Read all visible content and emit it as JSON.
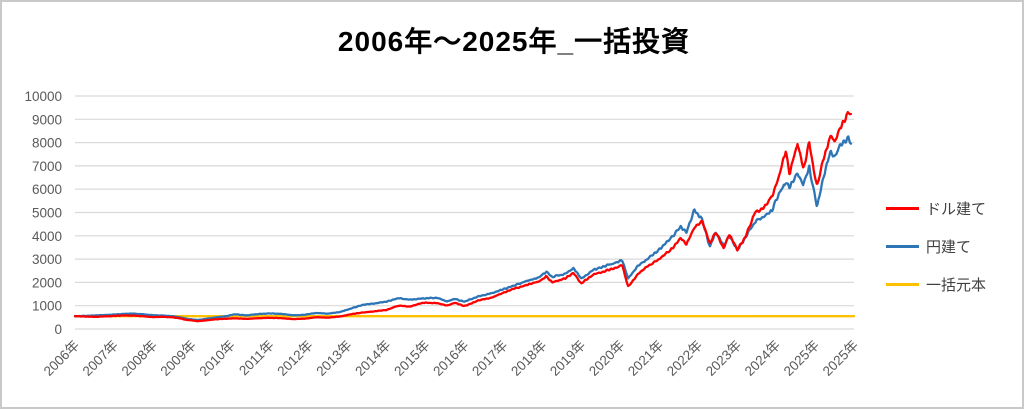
{
  "chart_data": {
    "type": "line",
    "title": "2006年～2025年_一括投資",
    "xlabel": "",
    "ylabel": "",
    "grid": true,
    "grid_color": "#d9d9d9",
    "axis_text_color": "#595959",
    "legend_position": "right",
    "y_axis": {
      "min": 0,
      "max": 10000,
      "step": 1000,
      "ticks": [
        0,
        1000,
        2000,
        3000,
        4000,
        5000,
        6000,
        7000,
        8000,
        9000,
        10000
      ]
    },
    "x_axis": {
      "range": [
        2006,
        2026
      ],
      "labels": [
        "2006年",
        "2007年",
        "2008年",
        "2009年",
        "2010年",
        "2011年",
        "2012年",
        "2013年",
        "2014年",
        "2015年",
        "2016年",
        "2017年",
        "2018年",
        "2019年",
        "2020年",
        "2021年",
        "2022年",
        "2023年",
        "2024年",
        "2025年",
        "2025年"
      ]
    },
    "series": [
      {
        "name": "一括元本",
        "color": "#ffc000",
        "noisy": false,
        "points": [
          [
            2006.0,
            550
          ],
          [
            2026.0,
            550
          ]
        ]
      },
      {
        "name": "円建て",
        "color": "#2e75b6",
        "noisy": true,
        "points": [
          [
            2006.0,
            550
          ],
          [
            2006.25,
            562
          ],
          [
            2006.5,
            578
          ],
          [
            2006.75,
            600
          ],
          [
            2007.0,
            618
          ],
          [
            2007.25,
            648
          ],
          [
            2007.5,
            658
          ],
          [
            2007.75,
            632
          ],
          [
            2008.0,
            592
          ],
          [
            2008.25,
            578
          ],
          [
            2008.5,
            548
          ],
          [
            2008.7,
            500
          ],
          [
            2008.85,
            445
          ],
          [
            2009.0,
            408
          ],
          [
            2009.15,
            385
          ],
          [
            2009.35,
            432
          ],
          [
            2009.6,
            492
          ],
          [
            2009.85,
            542
          ],
          [
            2010.1,
            628
          ],
          [
            2010.4,
            588
          ],
          [
            2010.7,
            640
          ],
          [
            2011.0,
            668
          ],
          [
            2011.3,
            648
          ],
          [
            2011.6,
            585
          ],
          [
            2011.9,
            615
          ],
          [
            2012.2,
            688
          ],
          [
            2012.5,
            662
          ],
          [
            2012.8,
            728
          ],
          [
            2013.1,
            890
          ],
          [
            2013.4,
            1040
          ],
          [
            2013.7,
            1100
          ],
          [
            2014.0,
            1180
          ],
          [
            2014.3,
            1320
          ],
          [
            2014.6,
            1260
          ],
          [
            2014.95,
            1310
          ],
          [
            2015.3,
            1345
          ],
          [
            2015.55,
            1175
          ],
          [
            2015.75,
            1290
          ],
          [
            2016.0,
            1170
          ],
          [
            2016.35,
            1400
          ],
          [
            2016.7,
            1530
          ],
          [
            2017.0,
            1700
          ],
          [
            2017.3,
            1890
          ],
          [
            2017.6,
            2060
          ],
          [
            2017.9,
            2200
          ],
          [
            2018.1,
            2460
          ],
          [
            2018.25,
            2240
          ],
          [
            2018.55,
            2350
          ],
          [
            2018.8,
            2600
          ],
          [
            2019.0,
            2170
          ],
          [
            2019.3,
            2530
          ],
          [
            2019.6,
            2700
          ],
          [
            2019.9,
            2870
          ],
          [
            2020.05,
            2950
          ],
          [
            2020.2,
            2170
          ],
          [
            2020.45,
            2700
          ],
          [
            2020.7,
            3000
          ],
          [
            2021.0,
            3400
          ],
          [
            2021.3,
            3900
          ],
          [
            2021.55,
            4400
          ],
          [
            2021.7,
            4150
          ],
          [
            2021.9,
            5150
          ],
          [
            2022.1,
            4700
          ],
          [
            2022.3,
            3530
          ],
          [
            2022.45,
            4150
          ],
          [
            2022.65,
            3600
          ],
          [
            2022.8,
            4000
          ],
          [
            2023.0,
            3390
          ],
          [
            2023.2,
            3880
          ],
          [
            2023.45,
            4600
          ],
          [
            2023.7,
            4815
          ],
          [
            2023.9,
            5100
          ],
          [
            2024.1,
            5900
          ],
          [
            2024.25,
            6300
          ],
          [
            2024.35,
            6100
          ],
          [
            2024.55,
            6700
          ],
          [
            2024.7,
            6200
          ],
          [
            2024.85,
            6960
          ],
          [
            2025.05,
            5240
          ],
          [
            2025.2,
            6400
          ],
          [
            2025.4,
            7670
          ],
          [
            2025.5,
            7310
          ],
          [
            2025.65,
            7900
          ],
          [
            2025.78,
            8100
          ],
          [
            2025.85,
            8240
          ],
          [
            2025.92,
            7950
          ]
        ]
      },
      {
        "name": "ドル建て",
        "color": "#fe0000",
        "noisy": true,
        "points": [
          [
            2006.0,
            550
          ],
          [
            2006.25,
            538
          ],
          [
            2006.5,
            522
          ],
          [
            2006.75,
            540
          ],
          [
            2007.0,
            558
          ],
          [
            2007.25,
            582
          ],
          [
            2007.5,
            575
          ],
          [
            2007.75,
            548
          ],
          [
            2008.0,
            512
          ],
          [
            2008.25,
            522
          ],
          [
            2008.5,
            505
          ],
          [
            2008.7,
            455
          ],
          [
            2008.85,
            395
          ],
          [
            2009.0,
            368
          ],
          [
            2009.15,
            335
          ],
          [
            2009.35,
            368
          ],
          [
            2009.6,
            415
          ],
          [
            2009.85,
            438
          ],
          [
            2010.1,
            458
          ],
          [
            2010.4,
            436
          ],
          [
            2010.7,
            462
          ],
          [
            2011.0,
            478
          ],
          [
            2011.3,
            466
          ],
          [
            2011.6,
            424
          ],
          [
            2011.9,
            446
          ],
          [
            2012.2,
            504
          ],
          [
            2012.5,
            490
          ],
          [
            2012.8,
            535
          ],
          [
            2013.1,
            640
          ],
          [
            2013.4,
            710
          ],
          [
            2013.7,
            760
          ],
          [
            2014.0,
            820
          ],
          [
            2014.3,
            1000
          ],
          [
            2014.6,
            960
          ],
          [
            2014.95,
            1130
          ],
          [
            2015.3,
            1110
          ],
          [
            2015.55,
            1000
          ],
          [
            2015.75,
            1120
          ],
          [
            2016.0,
            985
          ],
          [
            2016.35,
            1220
          ],
          [
            2016.7,
            1350
          ],
          [
            2017.0,
            1560
          ],
          [
            2017.3,
            1740
          ],
          [
            2017.6,
            1890
          ],
          [
            2017.9,
            2030
          ],
          [
            2018.1,
            2260
          ],
          [
            2018.25,
            2000
          ],
          [
            2018.55,
            2150
          ],
          [
            2018.8,
            2400
          ],
          [
            2019.0,
            1950
          ],
          [
            2019.3,
            2330
          ],
          [
            2019.6,
            2480
          ],
          [
            2019.9,
            2630
          ],
          [
            2020.05,
            2750
          ],
          [
            2020.2,
            1810
          ],
          [
            2020.45,
            2350
          ],
          [
            2020.7,
            2700
          ],
          [
            2021.0,
            3000
          ],
          [
            2021.3,
            3400
          ],
          [
            2021.55,
            3900
          ],
          [
            2021.7,
            3650
          ],
          [
            2021.9,
            4330
          ],
          [
            2022.1,
            4650
          ],
          [
            2022.3,
            3670
          ],
          [
            2022.45,
            4150
          ],
          [
            2022.65,
            3460
          ],
          [
            2022.8,
            4050
          ],
          [
            2023.0,
            3410
          ],
          [
            2023.2,
            3900
          ],
          [
            2023.45,
            4960
          ],
          [
            2023.7,
            5250
          ],
          [
            2023.9,
            5700
          ],
          [
            2024.1,
            6700
          ],
          [
            2024.25,
            7670
          ],
          [
            2024.35,
            6670
          ],
          [
            2024.55,
            7950
          ],
          [
            2024.7,
            6880
          ],
          [
            2024.85,
            7950
          ],
          [
            2025.05,
            6100
          ],
          [
            2025.2,
            7200
          ],
          [
            2025.4,
            8300
          ],
          [
            2025.5,
            8000
          ],
          [
            2025.65,
            8700
          ],
          [
            2025.78,
            8950
          ],
          [
            2025.85,
            9350
          ],
          [
            2025.92,
            9150
          ]
        ]
      }
    ],
    "legend": [
      "ドル建て",
      "円建て",
      "一括元本"
    ]
  }
}
